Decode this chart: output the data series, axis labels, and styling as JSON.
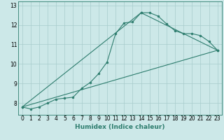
{
  "title": "",
  "xlabel": "Humidex (Indice chaleur)",
  "background_color": "#cce8e8",
  "line_color": "#2e7d6e",
  "grid_color": "#a8cccc",
  "x_ticks": [
    0,
    1,
    2,
    3,
    4,
    5,
    6,
    7,
    8,
    9,
    10,
    11,
    12,
    13,
    14,
    15,
    16,
    17,
    18,
    19,
    20,
    21,
    22,
    23
  ],
  "y_ticks": [
    8,
    9,
    10,
    11,
    12,
    13
  ],
  "ylim": [
    7.4,
    13.2
  ],
  "xlim": [
    -0.5,
    23.5
  ],
  "series1_x": [
    0,
    1,
    2,
    3,
    4,
    5,
    6,
    7,
    8,
    9,
    10,
    11,
    12,
    13,
    14,
    15,
    16,
    17,
    18,
    19,
    20,
    21,
    22,
    23
  ],
  "series1_y": [
    7.8,
    7.7,
    7.8,
    8.0,
    8.2,
    8.25,
    8.3,
    8.75,
    9.05,
    9.5,
    10.1,
    11.55,
    12.1,
    12.15,
    12.62,
    12.62,
    12.45,
    12.05,
    11.7,
    11.55,
    11.55,
    11.45,
    11.15,
    10.7
  ],
  "series2_x": [
    0,
    14,
    23
  ],
  "series2_y": [
    7.8,
    12.62,
    10.7
  ],
  "series3_x": [
    0,
    23
  ],
  "series3_y": [
    7.8,
    10.7
  ],
  "xlabel_fontsize": 6.5,
  "tick_fontsize": 5.5,
  "line_width": 0.8,
  "marker_size": 2.0
}
